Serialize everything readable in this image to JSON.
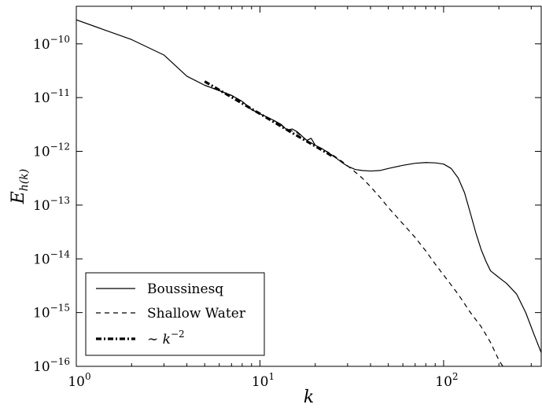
{
  "chart_data": {
    "type": "line",
    "xscale": "log",
    "yscale": "log",
    "xlim": [
      1,
      340
    ],
    "ylim": [
      1e-16,
      5e-10
    ],
    "xlabel": "k",
    "ylabel": {
      "main": "E",
      "sub": "h(k)"
    },
    "x_ticks": [
      {
        "base": "10",
        "exp": "0",
        "value": 1
      },
      {
        "base": "10",
        "exp": "1",
        "value": 10
      },
      {
        "base": "10",
        "exp": "2",
        "value": 100
      }
    ],
    "y_ticks": [
      {
        "base": "10",
        "exp": "−10",
        "value": 1e-10
      },
      {
        "base": "10",
        "exp": "−11",
        "value": 1e-11
      },
      {
        "base": "10",
        "exp": "−12",
        "value": 1e-12
      },
      {
        "base": "10",
        "exp": "−13",
        "value": 1e-13
      },
      {
        "base": "10",
        "exp": "−14",
        "value": 1e-14
      },
      {
        "base": "10",
        "exp": "−15",
        "value": 1e-15
      },
      {
        "base": "10",
        "exp": "−16",
        "value": 1e-16
      }
    ],
    "legend_position": "bottom-left",
    "series": [
      {
        "name": "Boussinesq",
        "style": "solid",
        "points": [
          [
            1,
            2.8e-10
          ],
          [
            2,
            1.2e-10
          ],
          [
            3,
            6.2e-11
          ],
          [
            4,
            2.5e-11
          ],
          [
            5,
            1.7e-11
          ],
          [
            6,
            1.35e-11
          ],
          [
            7,
            1.1e-11
          ],
          [
            8,
            8.5e-12
          ],
          [
            9,
            6e-12
          ],
          [
            10,
            5e-12
          ],
          [
            11,
            4.3e-12
          ],
          [
            12,
            3.7e-12
          ],
          [
            13,
            3.2e-12
          ],
          [
            14,
            2.5e-12
          ],
          [
            15,
            2.6e-12
          ],
          [
            16,
            2.3e-12
          ],
          [
            17,
            1.9e-12
          ],
          [
            18,
            1.6e-12
          ],
          [
            19,
            1.75e-12
          ],
          [
            20,
            1.3e-12
          ],
          [
            22,
            1.1e-12
          ],
          [
            24,
            9e-13
          ],
          [
            26,
            7.5e-13
          ],
          [
            28,
            6.2e-13
          ],
          [
            30,
            5.3e-13
          ],
          [
            33,
            4.6e-13
          ],
          [
            36,
            4.4e-13
          ],
          [
            40,
            4.3e-13
          ],
          [
            45,
            4.4e-13
          ],
          [
            50,
            4.8e-13
          ],
          [
            60,
            5.5e-13
          ],
          [
            70,
            6e-13
          ],
          [
            80,
            6.2e-13
          ],
          [
            90,
            6.1e-13
          ],
          [
            100,
            5.8e-13
          ],
          [
            110,
            4.8e-13
          ],
          [
            120,
            3.2e-13
          ],
          [
            130,
            1.7e-13
          ],
          [
            140,
            7e-14
          ],
          [
            150,
            3e-14
          ],
          [
            160,
            1.5e-14
          ],
          [
            170,
            9e-15
          ],
          [
            180,
            6e-15
          ],
          [
            200,
            4.5e-15
          ],
          [
            220,
            3.5e-15
          ],
          [
            250,
            2.2e-15
          ],
          [
            280,
            1e-15
          ],
          [
            310,
            4e-16
          ],
          [
            340,
            1.8e-16
          ]
        ]
      },
      {
        "name": "Shallow Water",
        "style": "dashed",
        "points": [
          [
            5,
            1.7e-11
          ],
          [
            6,
            1.35e-11
          ],
          [
            7,
            1.1e-11
          ],
          [
            8,
            8.5e-12
          ],
          [
            9,
            6e-12
          ],
          [
            10,
            5e-12
          ],
          [
            12,
            3.7e-12
          ],
          [
            14,
            2.6e-12
          ],
          [
            16,
            2.2e-12
          ],
          [
            18,
            1.6e-12
          ],
          [
            20,
            1.3e-12
          ],
          [
            22,
            1.1e-12
          ],
          [
            25,
            8.5e-13
          ],
          [
            28,
            6.5e-13
          ],
          [
            32,
            4.5e-13
          ],
          [
            36,
            3.2e-13
          ],
          [
            40,
            2.2e-13
          ],
          [
            45,
            1.4e-13
          ],
          [
            50,
            9e-14
          ],
          [
            60,
            4.5e-14
          ],
          [
            70,
            2.5e-14
          ],
          [
            80,
            1.4e-14
          ],
          [
            90,
            8e-15
          ],
          [
            100,
            5e-15
          ],
          [
            120,
            2.2e-15
          ],
          [
            140,
            1e-15
          ],
          [
            160,
            5.5e-16
          ],
          [
            180,
            2.8e-16
          ],
          [
            200,
            1.3e-16
          ],
          [
            210,
            1e-16
          ]
        ]
      },
      {
        "name": "~ k^-2",
        "label": {
          "prefix": "∼ ",
          "var": "k",
          "exp": "−2"
        },
        "style": "dashdot",
        "points": [
          [
            5,
            2e-11
          ],
          [
            10,
            5e-12
          ],
          [
            15,
            2.2e-12
          ],
          [
            20,
            1.25e-12
          ],
          [
            25,
            8e-13
          ]
        ]
      }
    ]
  }
}
